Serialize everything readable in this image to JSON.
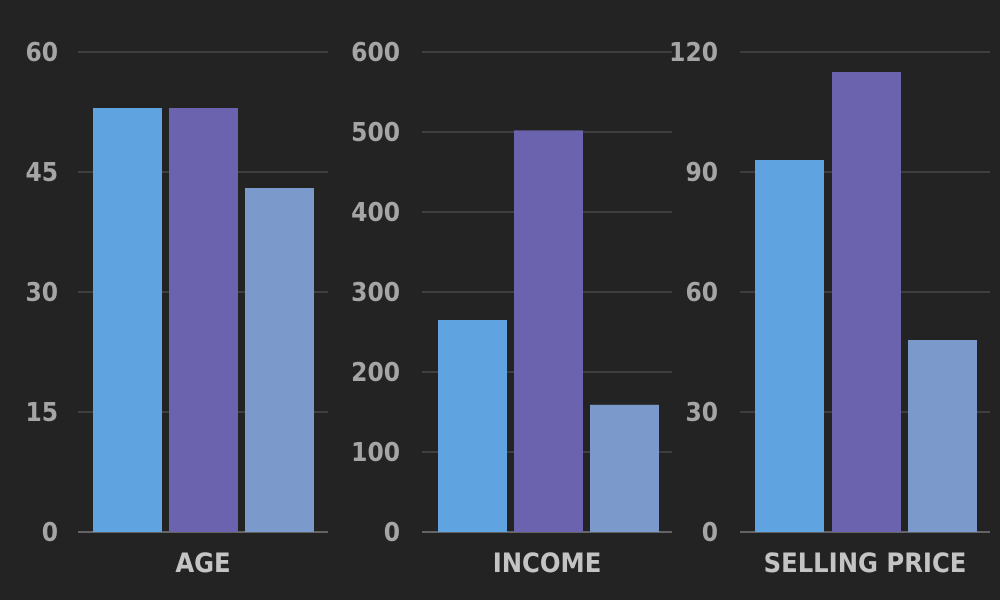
{
  "colors": {
    "background": "#232323",
    "grid": "#5a5a5a",
    "tick_text": "#a5a5a5",
    "category_text": "#c4c4c4"
  },
  "chart_data": [
    {
      "type": "bar",
      "categories": [
        "AGE"
      ],
      "series": [
        {
          "color": "#5fa3e0",
          "values": [
            53
          ]
        },
        {
          "color": "#6c63ae",
          "values": [
            53
          ]
        },
        {
          "color": "#7b9acb",
          "values": [
            43
          ]
        }
      ],
      "yticks": [
        "0",
        "15",
        "30",
        "45",
        "60"
      ],
      "ylim": [
        0,
        60
      ],
      "grid": true
    },
    {
      "type": "bar",
      "categories": [
        "INCOME"
      ],
      "series": [
        {
          "color": "#5fa3e0",
          "values": [
            265
          ]
        },
        {
          "color": "#6c63ae",
          "values": [
            502
          ]
        },
        {
          "color": "#7b9acb",
          "values": [
            159
          ]
        }
      ],
      "yticks": [
        "0",
        "100",
        "200",
        "300",
        "400",
        "500",
        "600"
      ],
      "ylim": [
        0,
        600
      ],
      "grid": true
    },
    {
      "type": "bar",
      "categories": [
        "SELLING PRICE"
      ],
      "series": [
        {
          "color": "#5fa3e0",
          "values": [
            93
          ]
        },
        {
          "color": "#6c63ae",
          "values": [
            115
          ]
        },
        {
          "color": "#7b9acb",
          "values": [
            48
          ]
        }
      ],
      "yticks": [
        "0",
        "30",
        "60",
        "90",
        "120"
      ],
      "ylim": [
        0,
        120
      ],
      "grid": true
    }
  ]
}
